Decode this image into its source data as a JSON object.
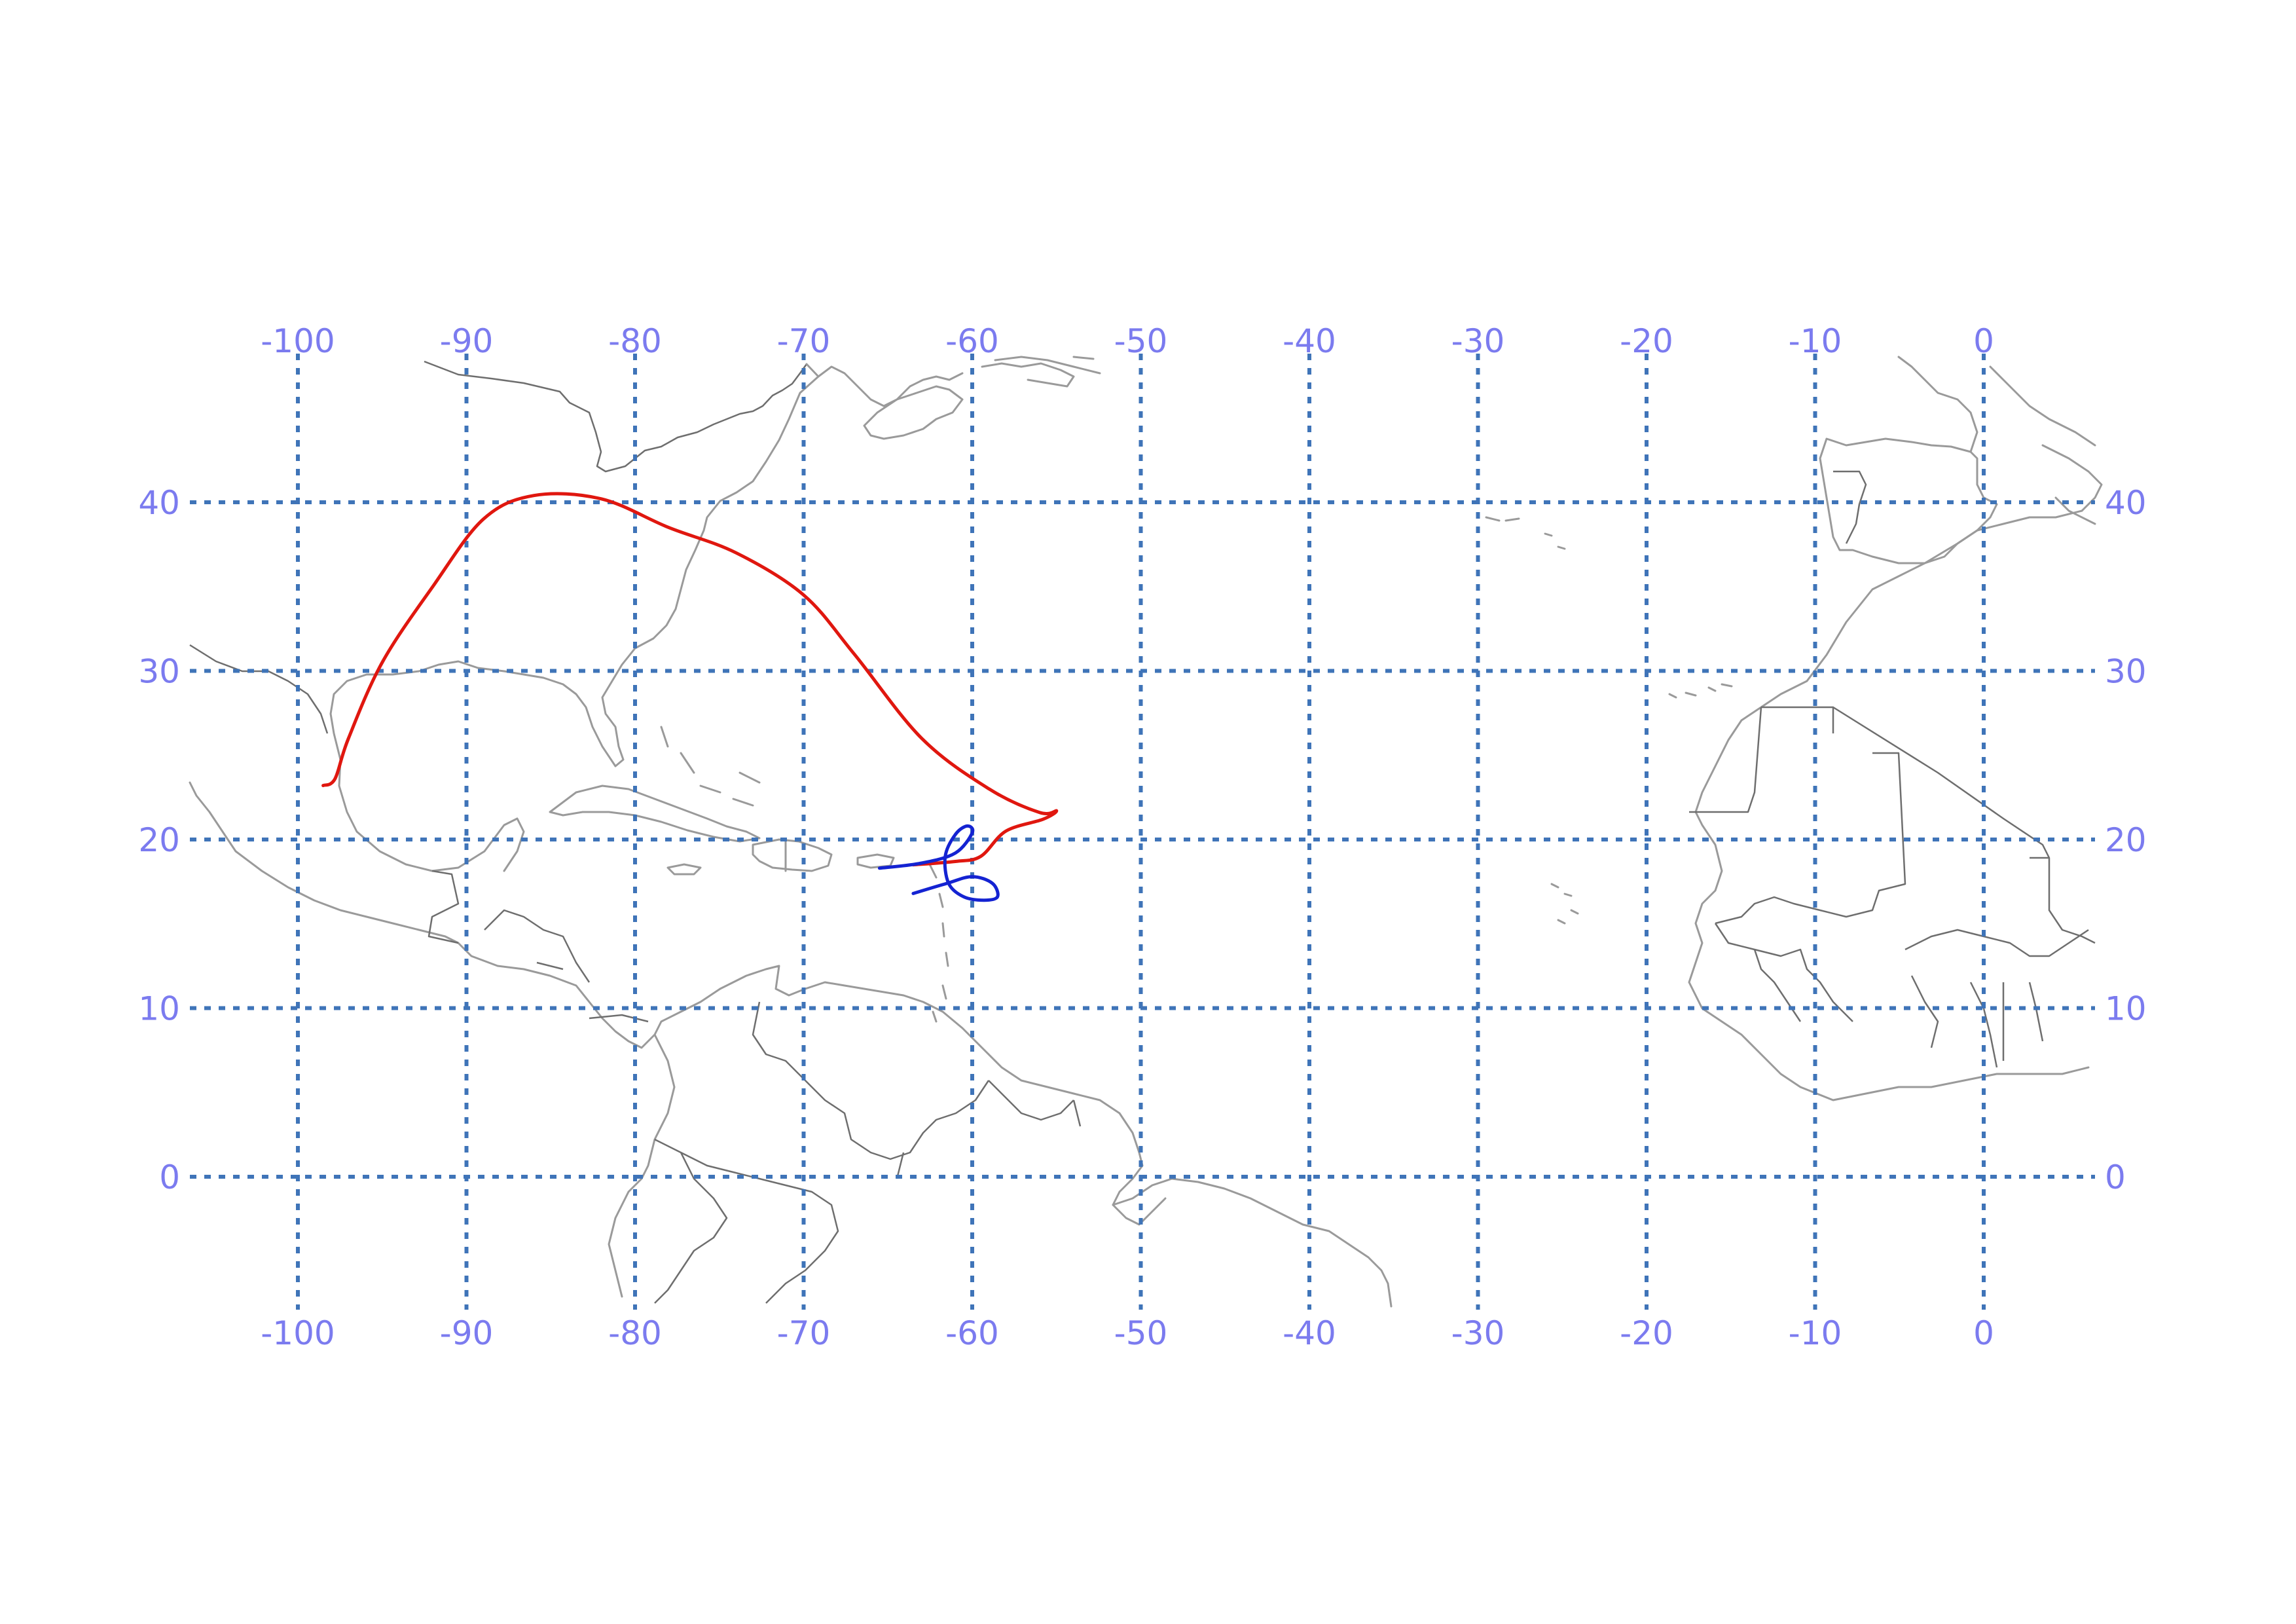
{
  "chart_data": {
    "type": "map",
    "projection": "equirectangular",
    "lon_range": [
      -107,
      6.5
    ],
    "lat_range": [
      -7.5,
      48.5
    ],
    "grid": true,
    "colors": {
      "grid": "#3f74b8",
      "tick_labels": "#7b7bef",
      "coast": "#9a9a9a",
      "border": "#6e6e6e"
    },
    "lon_ticks": [
      {
        "value": -100,
        "label": "-100"
      },
      {
        "value": -90,
        "label": "-90"
      },
      {
        "value": -80,
        "label": "-80"
      },
      {
        "value": -70,
        "label": "-70"
      },
      {
        "value": -60,
        "label": "-60"
      },
      {
        "value": -50,
        "label": "-50"
      },
      {
        "value": -40,
        "label": "-40"
      },
      {
        "value": -30,
        "label": "-30"
      },
      {
        "value": -20,
        "label": "-20"
      },
      {
        "value": -10,
        "label": "-10"
      },
      {
        "value": 0,
        "label": "0"
      }
    ],
    "lat_ticks": [
      {
        "value": 40,
        "label": "40"
      },
      {
        "value": 30,
        "label": "30"
      },
      {
        "value": 20,
        "label": "20"
      },
      {
        "value": 10,
        "label": "10"
      },
      {
        "value": 0,
        "label": "0"
      }
    ],
    "series": [
      {
        "color": "#e0170f",
        "points": [
          [
            -98.5,
            23.2
          ],
          [
            -97.8,
            23.6
          ],
          [
            -97.0,
            26.0
          ],
          [
            -95.0,
            30.5
          ],
          [
            -92.0,
            35.0
          ],
          [
            -89.0,
            39.0
          ],
          [
            -86.0,
            40.4
          ],
          [
            -82.0,
            40.2
          ],
          [
            -78.0,
            38.5
          ],
          [
            -74.0,
            37.0
          ],
          [
            -70.0,
            34.5
          ],
          [
            -67.0,
            31.0
          ],
          [
            -63.0,
            26.0
          ],
          [
            -59.0,
            23.0
          ],
          [
            -56.0,
            21.6
          ],
          [
            -55.0,
            21.7
          ],
          [
            -55.8,
            21.2
          ],
          [
            -58.0,
            20.5
          ],
          [
            -59.5,
            19.0
          ],
          [
            -61.0,
            18.7
          ],
          [
            -63.5,
            18.5
          ]
        ]
      },
      {
        "color": "#1423d2",
        "points": [
          [
            -65.5,
            18.3
          ],
          [
            -63.0,
            18.6
          ],
          [
            -61.0,
            19.2
          ],
          [
            -60.0,
            20.4
          ],
          [
            -60.3,
            20.8
          ],
          [
            -61.0,
            20.3
          ],
          [
            -61.6,
            19.0
          ],
          [
            -61.4,
            17.4
          ],
          [
            -60.5,
            16.6
          ],
          [
            -59.3,
            16.4
          ],
          [
            -58.5,
            16.6
          ],
          [
            -58.8,
            17.4
          ],
          [
            -60.0,
            17.8
          ],
          [
            -61.5,
            17.4
          ],
          [
            -63.5,
            16.8
          ]
        ]
      }
    ]
  }
}
